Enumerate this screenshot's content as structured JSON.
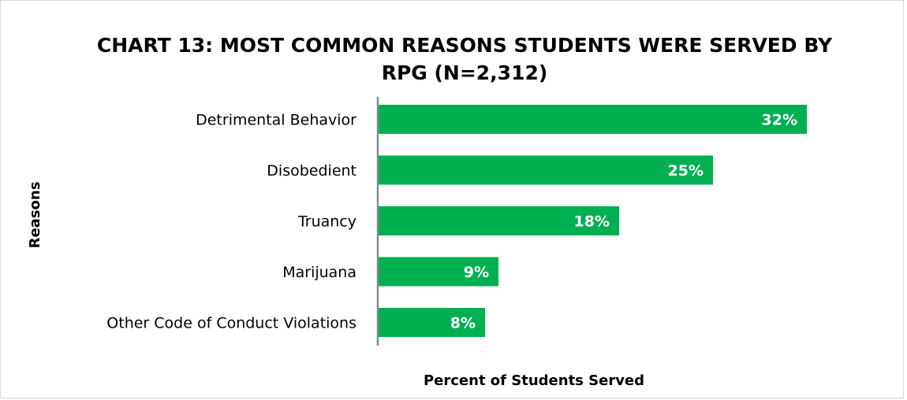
{
  "chart_data": {
    "type": "bar",
    "orientation": "horizontal",
    "title": "CHART 13: MOST COMMON REASONS STUDENTS WERE SERVED BY RPG (N=2,312)",
    "title_lines": [
      "CHART 13: MOST COMMON REASONS STUDENTS WERE SERVED BY",
      "RPG (N=2,312)"
    ],
    "categories": [
      "Detrimental Behavior",
      "Disobedient",
      "Truancy",
      "Marijuana",
      "Other Code of Conduct Violations"
    ],
    "values": [
      32,
      25,
      18,
      9,
      8
    ],
    "data_labels": [
      "32%",
      "25%",
      "18%",
      "9%",
      "8%"
    ],
    "xlabel": "Percent of Students Served",
    "ylabel": "Reasons",
    "xlim": [
      0,
      35
    ],
    "bar_color": "#00b050",
    "axis_color": "#7f8c99",
    "grid": false,
    "legend": "none"
  }
}
